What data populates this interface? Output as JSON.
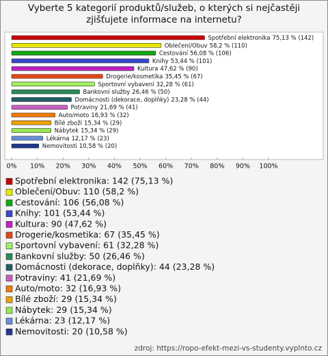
{
  "chart_data": {
    "type": "bar",
    "orientation": "horizontal",
    "title": "Vyberte 5 kategorií produktů/služeb, o kterých si nejčastěji zjišťujete informace na internetu?",
    "categories": [
      "Spotřební elektronika",
      "Oblečení/Obuv",
      "Cestování",
      "Knihy",
      "Kultura",
      "Drogerie/kosmetika",
      "Sportovní vybavení",
      "Bankovní služby",
      "Domácnosti (dekorace, doplňky)",
      "Potraviny",
      "Auto/moto",
      "Bílé zboží",
      "Nábytek",
      "Lékárna",
      "Nemovitosti"
    ],
    "values": [
      75.13,
      58.2,
      56.08,
      53.44,
      47.62,
      35.45,
      32.28,
      26.46,
      23.28,
      21.69,
      16.93,
      15.34,
      15.34,
      12.17,
      10.58
    ],
    "value_labels": [
      "75,13 % (142)",
      "58,2 % (110)",
      "56,08 % (106)",
      "53,44 % (101)",
      "47,62 % (90)",
      "35,45 % (67)",
      "32,28 % (61)",
      "26,46 % (50)",
      "23,28 % (44)",
      "21,69 % (41)",
      "16,93 % (32)",
      "15,34 % (29)",
      "15,34 % (29)",
      "12,17 % (23)",
      "10,58 % (20)"
    ],
    "colors": [
      "#c80000",
      "#e8e800",
      "#10a810",
      "#3848c8",
      "#c020c8",
      "#e04818",
      "#a0f060",
      "#2a8a58",
      "#1e5e64",
      "#c860c0",
      "#f07808",
      "#f0a000",
      "#98e850",
      "#6890d8",
      "#203890"
    ],
    "legend": [
      "Spotřební elektronika: 142 (75,13 %)",
      "Oblečení/Obuv: 110 (58,2 %)",
      "Cestování: 106 (56,08 %)",
      "Knihy: 101 (53,44 %)",
      "Kultura: 90 (47,62 %)",
      "Drogerie/kosmetika: 67 (35,45 %)",
      "Sportovní vybavení: 61 (32,28 %)",
      "Bankovní služby: 50 (26,46 %)",
      "Domácnosti (dekorace, doplňky): 44 (23,28 %)",
      "Potraviny: 41 (21,69 %)",
      "Auto/moto: 32 (16,93 %)",
      "Bílé zboží: 29 (15,34 %)",
      "Nábytek: 29 (15,34 %)",
      "Lékárna: 23 (12,17 %)",
      "Nemovitosti: 20 (10,58 %)"
    ],
    "xlim": [
      0,
      100
    ],
    "xticks": [
      {
        "value": 0,
        "label": "0%"
      },
      {
        "value": 10,
        "label": "10%"
      },
      {
        "value": 20,
        "label": "20%"
      },
      {
        "value": 30,
        "label": "30%"
      },
      {
        "value": 40,
        "label": "40%"
      },
      {
        "value": 50,
        "label": "50%"
      },
      {
        "value": 60,
        "label": "60%"
      },
      {
        "value": 70,
        "label": "70%"
      },
      {
        "value": 80,
        "label": "80%"
      },
      {
        "value": 90,
        "label": "90%"
      },
      {
        "value": 100,
        "label": "100%"
      }
    ],
    "source": "zdroj: https://ropo-efekt-mezi-vs-studenty.vyplnto.cz"
  }
}
